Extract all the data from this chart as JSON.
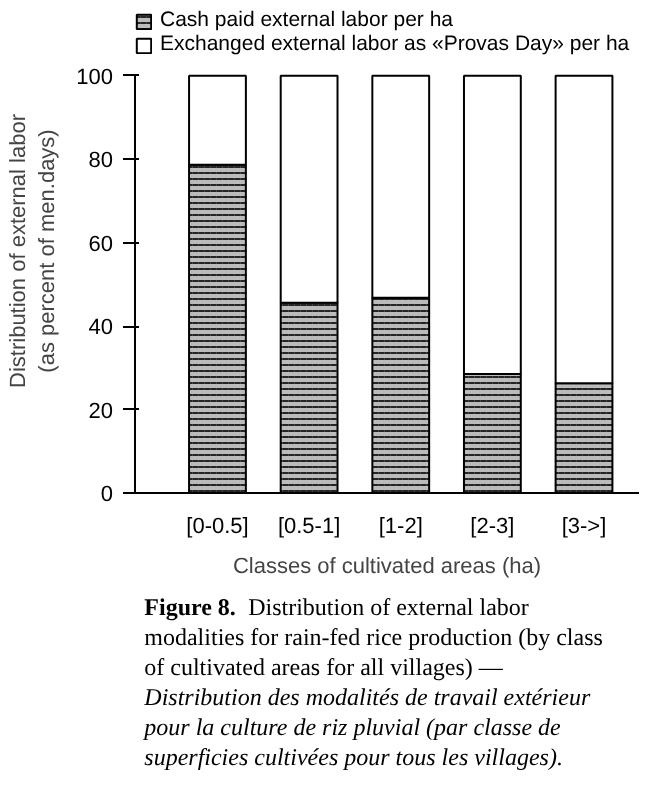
{
  "chart_data": {
    "type": "bar",
    "stacked": true,
    "xlabel": "Classes of cultivated areas (ha)",
    "ylabel": "Distribution of external labor\n(as percent of men.days)",
    "categories": [
      "[0-0.5]",
      "[0.5-1]",
      "[1-2]",
      "[2-3]",
      "[3->]"
    ],
    "series": [
      {
        "name": "Cash paid external labor per ha",
        "color": "#bbbbbb",
        "values": [
          78.7,
          45.6,
          46.8,
          28.5,
          26.3
        ]
      },
      {
        "name": "Exchanged external labor as «Provas Day» per ha",
        "color": "#ffffff",
        "values": [
          21.3,
          54.4,
          53.2,
          71.5,
          73.7
        ]
      }
    ],
    "ylim": [
      0,
      100
    ],
    "yticks": [
      0,
      20,
      40,
      60,
      80,
      100
    ],
    "grid": false,
    "legend": "top left",
    "annotations": [
      "Figure 8.",
      "Distribution of external labor modalities for rain-fed rice production (by class of cultivated areas for all villages) —",
      "Distribution des modalités de travail extérieur pour la culture de riz pluvial (par classe de superficies cultivées pour tous les villages)."
    ]
  }
}
